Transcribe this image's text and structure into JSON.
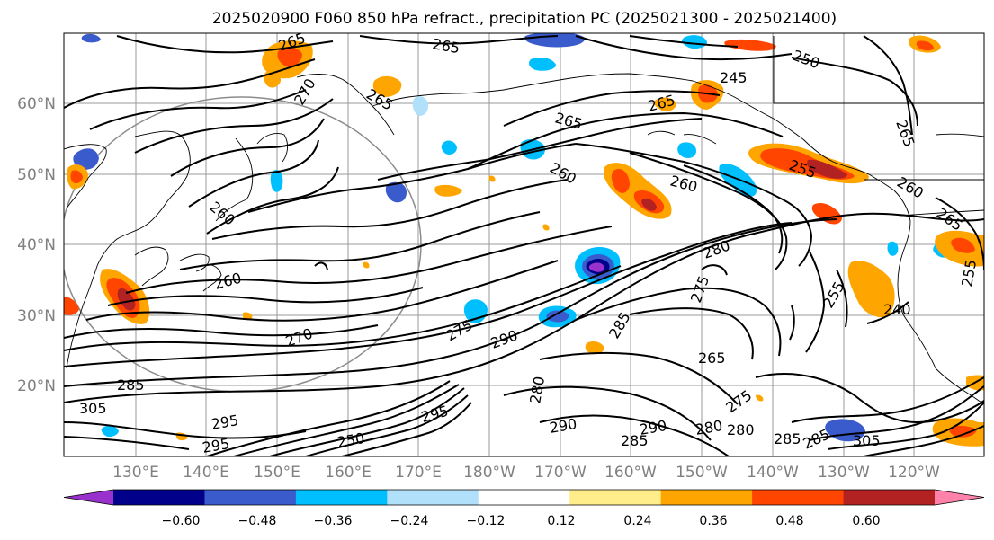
{
  "title": "2025020900 F060 850 hPa refract., precipitation PC (2025021300 - 2025021400)",
  "lat_labels": [
    "60°N",
    "50°N",
    "40°N",
    "30°N",
    "20°N"
  ],
  "lon_labels": [
    "130°E",
    "140°E",
    "150°E",
    "160°E",
    "170°E",
    "180°W",
    "170°W",
    "160°W",
    "150°W",
    "140°W",
    "130°W",
    "120°W"
  ],
  "colorbar": {
    "colors": [
      "#9932cc",
      "#00008b",
      "#3a5bcc",
      "#00bfff",
      "#b0e0fa",
      "#ffffff",
      "#ffec8b",
      "#ffa500",
      "#ff4500",
      "#b22222",
      "#ff82ab"
    ],
    "labels": [
      "−0.60",
      "−0.48",
      "−0.36",
      "−0.24",
      "−0.12",
      "0.12",
      "0.24",
      "0.36",
      "0.48",
      "0.60"
    ]
  },
  "contour_labels": [
    "265",
    "265",
    "250",
    "245",
    "270",
    "265",
    "260",
    "265",
    "265",
    "255",
    "260",
    "260",
    "265",
    "260",
    "280",
    "275",
    "265",
    "260",
    "255",
    "240",
    "270",
    "275",
    "290",
    "285",
    "285",
    "265",
    "275",
    "280",
    "295",
    "285",
    "305",
    "295",
    "295",
    "285",
    "290",
    "280",
    "290",
    "305",
    "285",
    "250",
    "280",
    "255"
  ]
}
